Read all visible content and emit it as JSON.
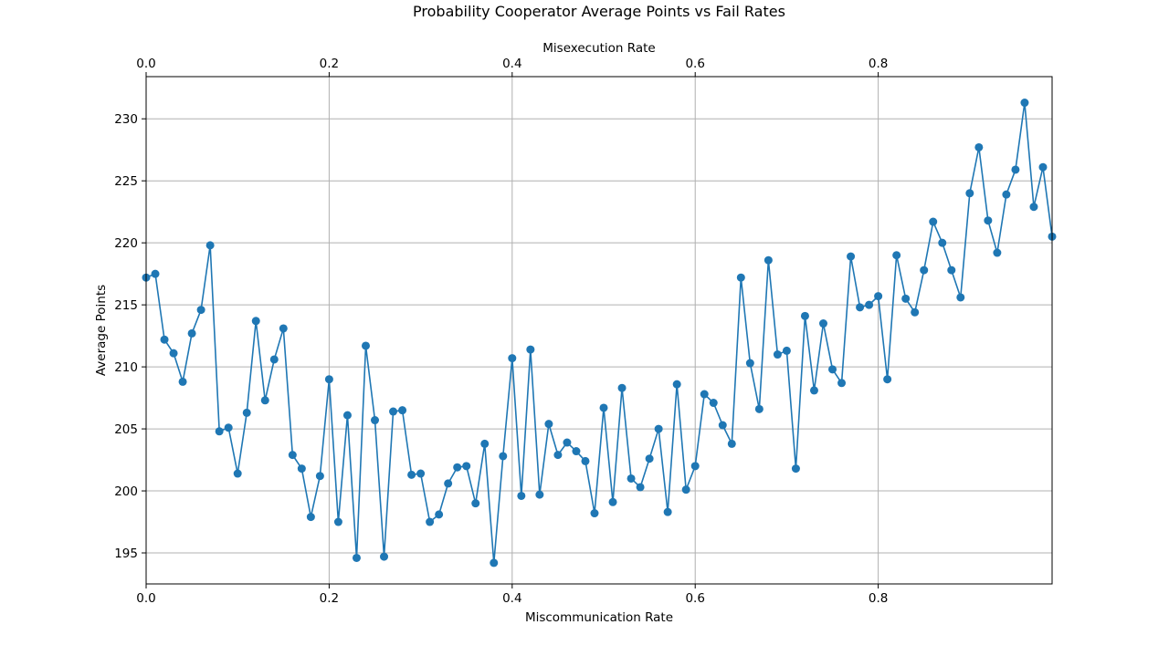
{
  "chart_data": {
    "type": "line",
    "title": "Probability Cooperator Average Points vs Fail Rates",
    "xlabel": "Miscommunication Rate",
    "xlabel_top": "Misexecution Rate",
    "ylabel": "Average Points",
    "xlim": [
      0,
      0.99
    ],
    "ylim": [
      192.5,
      233.4
    ],
    "x_ticks": [
      "0.0",
      "0.2",
      "0.4",
      "0.6",
      "0.8"
    ],
    "x_ticks_top": [
      "0.0",
      "0.2",
      "0.4",
      "0.6",
      "0.8"
    ],
    "y_ticks": [
      "195",
      "200",
      "205",
      "210",
      "215",
      "220",
      "225",
      "230"
    ],
    "grid": true,
    "marker": "circle",
    "color": "#1f77b4",
    "series": [
      {
        "x": [
          0.0,
          0.01,
          0.02,
          0.03,
          0.04,
          0.05,
          0.06,
          0.07,
          0.08,
          0.09,
          0.1,
          0.11,
          0.12,
          0.13,
          0.14,
          0.15,
          0.16,
          0.17,
          0.18,
          0.19,
          0.2,
          0.21,
          0.22,
          0.23,
          0.24,
          0.25,
          0.26,
          0.27,
          0.28,
          0.29,
          0.3,
          0.31,
          0.32,
          0.33,
          0.34,
          0.35,
          0.36,
          0.37,
          0.38,
          0.39,
          0.4,
          0.41,
          0.42,
          0.43,
          0.44,
          0.45,
          0.46,
          0.47,
          0.48,
          0.49,
          0.5,
          0.51,
          0.52,
          0.53,
          0.54,
          0.55,
          0.56,
          0.57,
          0.58,
          0.59,
          0.6,
          0.61,
          0.62,
          0.63,
          0.64,
          0.65,
          0.66,
          0.67,
          0.68,
          0.69,
          0.7,
          0.71,
          0.72,
          0.73,
          0.74,
          0.75,
          0.76,
          0.77,
          0.78,
          0.79,
          0.8,
          0.81,
          0.82,
          0.83,
          0.84,
          0.85,
          0.86,
          0.87,
          0.88,
          0.89,
          0.9,
          0.91,
          0.92,
          0.93,
          0.94,
          0.95,
          0.96,
          0.97,
          0.98,
          0.99
        ],
        "values": [
          217.2,
          217.5,
          212.2,
          211.1,
          208.8,
          212.7,
          214.6,
          219.8,
          204.8,
          205.1,
          201.4,
          206.3,
          213.7,
          207.3,
          210.6,
          213.1,
          202.9,
          201.8,
          197.9,
          201.2,
          209.0,
          197.5,
          206.1,
          194.6,
          211.7,
          205.7,
          194.7,
          206.4,
          206.5,
          201.3,
          201.4,
          197.5,
          198.1,
          200.6,
          201.9,
          202.0,
          199.0,
          203.8,
          194.2,
          202.8,
          210.7,
          199.6,
          211.4,
          199.7,
          205.4,
          202.9,
          203.9,
          203.2,
          202.4,
          198.2,
          206.7,
          199.1,
          208.3,
          201.0,
          200.3,
          202.6,
          205.0,
          198.3,
          208.6,
          200.1,
          202.0,
          207.8,
          207.1,
          205.3,
          203.8,
          217.2,
          210.3,
          206.6,
          218.6,
          211.0,
          211.3,
          201.8,
          214.1,
          208.1,
          213.5,
          209.8,
          208.7,
          218.9,
          214.8,
          215.0,
          215.7,
          209.0,
          219.0,
          215.5,
          214.4,
          217.8,
          221.7,
          220.0,
          217.8,
          215.6,
          224.0,
          227.7,
          221.8,
          219.2,
          223.9,
          225.9,
          231.3,
          222.9,
          226.1,
          220.5
        ]
      }
    ]
  }
}
